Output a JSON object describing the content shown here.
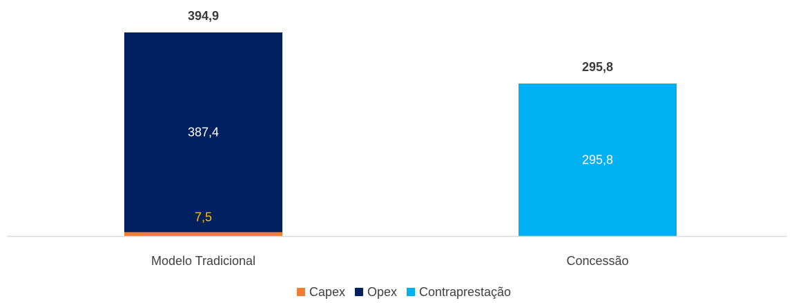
{
  "chart_data": {
    "type": "bar",
    "stacked": true,
    "categories": [
      "Modelo Tradicional",
      "Concessão"
    ],
    "series": [
      {
        "name": "Capex",
        "color": "#ed7d31",
        "values": [
          7.5,
          0
        ],
        "labels": [
          "7,5",
          ""
        ],
        "label_color": "#ffc000"
      },
      {
        "name": "Opex",
        "color": "#002060",
        "values": [
          387.4,
          0
        ],
        "labels": [
          "387,4",
          ""
        ],
        "label_color": "#ffffff"
      },
      {
        "name": "Contraprestação",
        "color": "#00b0f0",
        "values": [
          0,
          295.8
        ],
        "labels": [
          "",
          "295,8"
        ],
        "label_color": "#ffffff"
      }
    ],
    "totals": [
      394.9,
      295.8
    ],
    "total_labels": [
      "394,9",
      "295,8"
    ],
    "ylim": [
      0,
      394.9
    ],
    "legend_position": "bottom",
    "grid": false
  }
}
